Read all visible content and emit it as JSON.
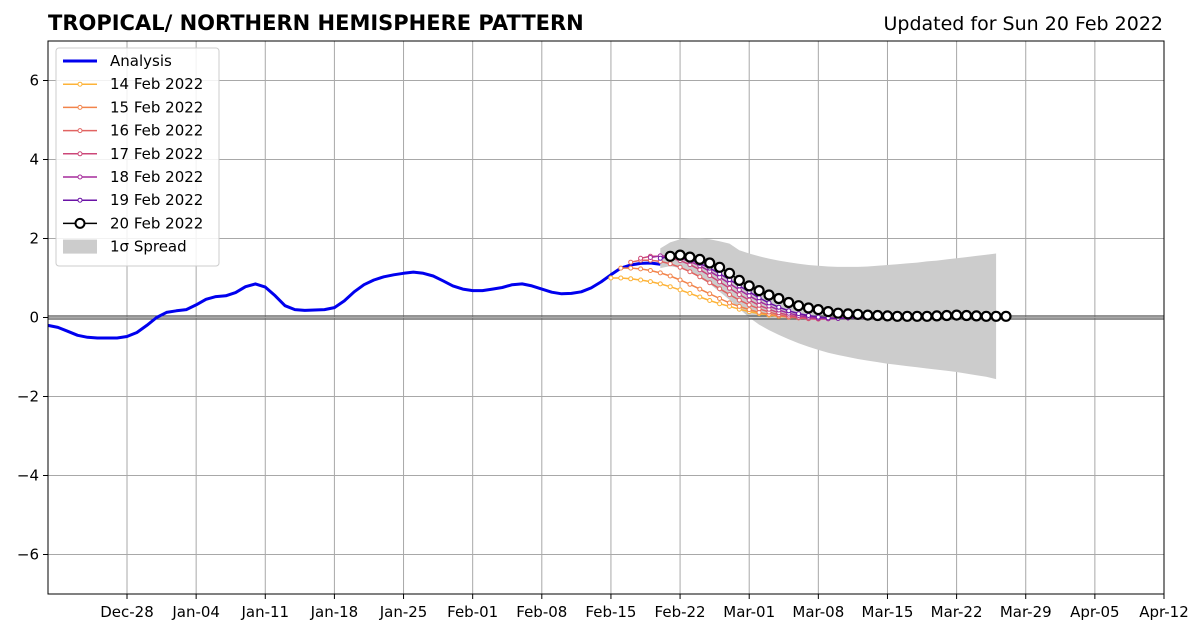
{
  "chart_data": {
    "type": "line",
    "title": "TROPICAL/ NORTHERN HEMISPHERE PATTERN",
    "subtitle": "Updated for Sun 20 Feb 2022",
    "xlim": [
      "2021-12-20",
      "2022-04-12"
    ],
    "ylim": [
      -7,
      7
    ],
    "grid": true,
    "legend_position": "top-left",
    "x_ticks": [
      {
        "date": "2021-12-28",
        "label": "Dec-28"
      },
      {
        "date": "2022-01-04",
        "label": "Jan-04"
      },
      {
        "date": "2022-01-11",
        "label": "Jan-11"
      },
      {
        "date": "2022-01-18",
        "label": "Jan-18"
      },
      {
        "date": "2022-01-25",
        "label": "Jan-25"
      },
      {
        "date": "2022-02-01",
        "label": "Feb-01"
      },
      {
        "date": "2022-02-08",
        "label": "Feb-08"
      },
      {
        "date": "2022-02-15",
        "label": "Feb-15"
      },
      {
        "date": "2022-02-22",
        "label": "Feb-22"
      },
      {
        "date": "2022-03-01",
        "label": "Mar-01"
      },
      {
        "date": "2022-03-08",
        "label": "Mar-08"
      },
      {
        "date": "2022-03-15",
        "label": "Mar-15"
      },
      {
        "date": "2022-03-22",
        "label": "Mar-22"
      },
      {
        "date": "2022-03-29",
        "label": "Mar-29"
      },
      {
        "date": "2022-04-05",
        "label": "Apr-05"
      },
      {
        "date": "2022-04-12",
        "label": "Apr-12"
      }
    ],
    "y_ticks": [
      {
        "value": -6,
        "label": "−6"
      },
      {
        "value": -4,
        "label": "−4"
      },
      {
        "value": -2,
        "label": "−2"
      },
      {
        "value": 0,
        "label": "0"
      },
      {
        "value": 2,
        "label": "2"
      },
      {
        "value": 4,
        "label": "4"
      },
      {
        "value": 6,
        "label": "6"
      }
    ],
    "analysis": {
      "name": "Analysis",
      "color": "#0000ee",
      "points": [
        [
          "2021-12-20",
          -0.2
        ],
        [
          "2021-12-21",
          -0.25
        ],
        [
          "2021-12-22",
          -0.35
        ],
        [
          "2021-12-23",
          -0.45
        ],
        [
          "2021-12-24",
          -0.5
        ],
        [
          "2021-12-25",
          -0.52
        ],
        [
          "2021-12-26",
          -0.52
        ],
        [
          "2021-12-27",
          -0.52
        ],
        [
          "2021-12-28",
          -0.48
        ],
        [
          "2021-12-29",
          -0.38
        ],
        [
          "2021-12-30",
          -0.2
        ],
        [
          "2021-12-31",
          0.0
        ],
        [
          "2022-01-01",
          0.13
        ],
        [
          "2022-01-02",
          0.17
        ],
        [
          "2022-01-03",
          0.2
        ],
        [
          "2022-01-04",
          0.32
        ],
        [
          "2022-01-05",
          0.46
        ],
        [
          "2022-01-06",
          0.53
        ],
        [
          "2022-01-07",
          0.55
        ],
        [
          "2022-01-08",
          0.63
        ],
        [
          "2022-01-09",
          0.78
        ],
        [
          "2022-01-10",
          0.85
        ],
        [
          "2022-01-11",
          0.77
        ],
        [
          "2022-01-12",
          0.55
        ],
        [
          "2022-01-13",
          0.3
        ],
        [
          "2022-01-14",
          0.2
        ],
        [
          "2022-01-15",
          0.18
        ],
        [
          "2022-01-16",
          0.19
        ],
        [
          "2022-01-17",
          0.2
        ],
        [
          "2022-01-18",
          0.25
        ],
        [
          "2022-01-19",
          0.42
        ],
        [
          "2022-01-20",
          0.65
        ],
        [
          "2022-01-21",
          0.83
        ],
        [
          "2022-01-22",
          0.95
        ],
        [
          "2022-01-23",
          1.03
        ],
        [
          "2022-01-24",
          1.08
        ],
        [
          "2022-01-25",
          1.12
        ],
        [
          "2022-01-26",
          1.15
        ],
        [
          "2022-01-27",
          1.12
        ],
        [
          "2022-01-28",
          1.05
        ],
        [
          "2022-01-29",
          0.93
        ],
        [
          "2022-01-30",
          0.8
        ],
        [
          "2022-01-31",
          0.72
        ],
        [
          "2022-02-01",
          0.68
        ],
        [
          "2022-02-02",
          0.68
        ],
        [
          "2022-02-03",
          0.72
        ],
        [
          "2022-02-04",
          0.76
        ],
        [
          "2022-02-05",
          0.83
        ],
        [
          "2022-02-06",
          0.85
        ],
        [
          "2022-02-07",
          0.8
        ],
        [
          "2022-02-08",
          0.72
        ],
        [
          "2022-02-09",
          0.64
        ],
        [
          "2022-02-10",
          0.6
        ],
        [
          "2022-02-11",
          0.61
        ],
        [
          "2022-02-12",
          0.65
        ],
        [
          "2022-02-13",
          0.75
        ],
        [
          "2022-02-14",
          0.9
        ],
        [
          "2022-02-15",
          1.08
        ],
        [
          "2022-02-16",
          1.25
        ],
        [
          "2022-02-17",
          1.33
        ],
        [
          "2022-02-18",
          1.37
        ],
        [
          "2022-02-19",
          1.38
        ],
        [
          "2022-02-20",
          1.35
        ]
      ]
    },
    "forecasts": [
      {
        "name": "14 Feb 2022",
        "color": "#fdb338",
        "start": "2022-02-15",
        "values": [
          1.0,
          1.0,
          0.98,
          0.95,
          0.91,
          0.85,
          0.78,
          0.7,
          0.61,
          0.52,
          0.43,
          0.35,
          0.28,
          0.21,
          0.15,
          0.1,
          0.06,
          0.03,
          0.01,
          0.0,
          0.0,
          -0.01,
          -0.01,
          -0.01,
          0.0
        ]
      },
      {
        "name": "15 Feb 2022",
        "color": "#f2844b",
        "start": "2022-02-16",
        "values": [
          1.25,
          1.25,
          1.23,
          1.19,
          1.13,
          1.05,
          0.95,
          0.84,
          0.72,
          0.6,
          0.48,
          0.37,
          0.28,
          0.2,
          0.13,
          0.08,
          0.04,
          0.01,
          -0.01,
          -0.02,
          -0.02,
          -0.02,
          -0.01,
          0.0,
          0.0
        ]
      },
      {
        "name": "16 Feb 2022",
        "color": "#e16462",
        "start": "2022-02-17",
        "values": [
          1.4,
          1.45,
          1.45,
          1.42,
          1.36,
          1.27,
          1.16,
          1.03,
          0.88,
          0.73,
          0.58,
          0.44,
          0.32,
          0.22,
          0.14,
          0.07,
          0.02,
          -0.01,
          -0.03,
          -0.04,
          -0.03,
          -0.02,
          -0.01,
          0.0,
          0.0
        ]
      },
      {
        "name": "17 Feb 2022",
        "color": "#cc4778",
        "start": "2022-02-18",
        "values": [
          1.5,
          1.55,
          1.55,
          1.51,
          1.44,
          1.34,
          1.21,
          1.06,
          0.9,
          0.74,
          0.58,
          0.44,
          0.31,
          0.21,
          0.12,
          0.06,
          0.01,
          -0.02,
          -0.03,
          -0.03,
          -0.02,
          -0.01,
          0.0,
          0.0,
          0.0
        ]
      },
      {
        "name": "18 Feb 2022",
        "color": "#a52c9b",
        "start": "2022-02-19",
        "values": [
          1.52,
          1.56,
          1.55,
          1.5,
          1.42,
          1.31,
          1.17,
          1.02,
          0.86,
          0.7,
          0.55,
          0.41,
          0.29,
          0.19,
          0.11,
          0.05,
          0.01,
          -0.02,
          -0.03,
          -0.02,
          -0.01,
          0.0,
          0.0,
          0.0,
          0.0
        ]
      },
      {
        "name": "19 Feb 2022",
        "color": "#6a12a6",
        "start": "2022-02-20",
        "values": [
          1.5,
          1.54,
          1.52,
          1.46,
          1.37,
          1.25,
          1.11,
          0.96,
          0.8,
          0.65,
          0.5,
          0.37,
          0.26,
          0.17,
          0.1,
          0.05,
          0.01,
          -0.01,
          -0.02,
          -0.01,
          0.0,
          0.0,
          0.0,
          0.0,
          0.0
        ]
      }
    ],
    "latest": {
      "name": "20 Feb 2022",
      "color": "#000000",
      "start": "2022-02-21",
      "values": [
        1.55,
        1.58,
        1.53,
        1.47,
        1.38,
        1.27,
        1.12,
        0.94,
        0.8,
        0.68,
        0.57,
        0.48,
        0.38,
        0.3,
        0.24,
        0.2,
        0.15,
        0.11,
        0.09,
        0.08,
        0.06,
        0.05,
        0.04,
        0.03,
        0.03,
        0.03,
        0.03,
        0.04,
        0.05,
        0.06,
        0.05,
        0.04,
        0.03,
        0.03,
        0.03
      ]
    },
    "spread": {
      "name": "1σ Spread",
      "color": "#cccccc",
      "points": [
        [
          "2022-02-20",
          1.75,
          1.25
        ],
        [
          "2022-02-21",
          1.9,
          1.3
        ],
        [
          "2022-02-22",
          1.98,
          1.25
        ],
        [
          "2022-02-23",
          2.0,
          1.15
        ],
        [
          "2022-02-24",
          2.0,
          1.0
        ],
        [
          "2022-02-25",
          1.98,
          0.85
        ],
        [
          "2022-02-26",
          1.93,
          0.65
        ],
        [
          "2022-02-27",
          1.87,
          0.45
        ],
        [
          "2022-02-28",
          1.7,
          0.22
        ],
        [
          "2022-03-01",
          1.62,
          0.0
        ],
        [
          "2022-03-02",
          1.55,
          -0.18
        ],
        [
          "2022-03-03",
          1.49,
          -0.32
        ],
        [
          "2022-03-04",
          1.44,
          -0.44
        ],
        [
          "2022-03-05",
          1.4,
          -0.55
        ],
        [
          "2022-03-06",
          1.36,
          -0.65
        ],
        [
          "2022-03-07",
          1.33,
          -0.74
        ],
        [
          "2022-03-08",
          1.31,
          -0.82
        ],
        [
          "2022-03-09",
          1.29,
          -0.89
        ],
        [
          "2022-03-10",
          1.28,
          -0.95
        ],
        [
          "2022-03-11",
          1.28,
          -1.0
        ],
        [
          "2022-03-12",
          1.28,
          -1.05
        ],
        [
          "2022-03-13",
          1.29,
          -1.09
        ],
        [
          "2022-03-14",
          1.31,
          -1.13
        ],
        [
          "2022-03-15",
          1.33,
          -1.17
        ],
        [
          "2022-03-16",
          1.35,
          -1.2
        ],
        [
          "2022-03-17",
          1.37,
          -1.23
        ],
        [
          "2022-03-18",
          1.39,
          -1.26
        ],
        [
          "2022-03-19",
          1.42,
          -1.29
        ],
        [
          "2022-03-20",
          1.44,
          -1.32
        ],
        [
          "2022-03-21",
          1.47,
          -1.35
        ],
        [
          "2022-03-22",
          1.5,
          -1.38
        ],
        [
          "2022-03-23",
          1.53,
          -1.42
        ],
        [
          "2022-03-24",
          1.56,
          -1.46
        ],
        [
          "2022-03-25",
          1.59,
          -1.5
        ],
        [
          "2022-03-26",
          1.62,
          -1.56
        ],
        [
          "2022-03-26",
          1.62,
          -1.58
        ]
      ]
    }
  }
}
